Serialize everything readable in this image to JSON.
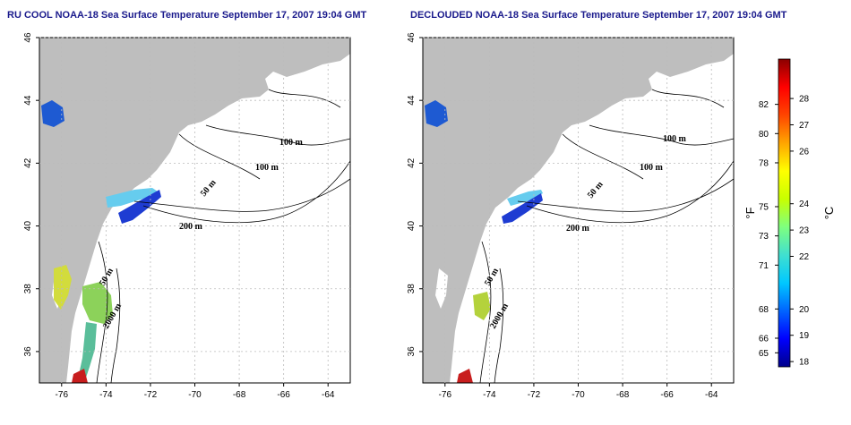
{
  "panels": [
    {
      "title": "RU COOL NOAA-18 Sea Surface Temperature September 17, 2007 19:04 GMT",
      "contour_labels": [
        "100 m",
        "100 m",
        "50 m",
        "200 m",
        "50 m",
        "2000 m"
      ]
    },
    {
      "title": "DECLOUDED NOAA-18 Sea Surface Temperature September 17, 2007 19:04 GMT",
      "contour_labels": [
        "100 m",
        "100 m",
        "50 m",
        "200 m",
        "50 m",
        "2000 m"
      ]
    }
  ],
  "lat_ticks": [
    "36",
    "38",
    "40",
    "42",
    "44",
    "46"
  ],
  "lon_ticks": [
    "-76",
    "-74",
    "-72",
    "-70",
    "-68",
    "-66",
    "-64"
  ],
  "colorbar": {
    "fahrenheit_ticks": [
      "65",
      "66",
      "68",
      "71",
      "73",
      "75",
      "78",
      "80",
      "82"
    ],
    "celsius_ticks": [
      "18",
      "19",
      "20",
      "22",
      "23",
      "24",
      "26",
      "27",
      "28"
    ],
    "f_unit": "°F",
    "c_unit": "°C",
    "colors": [
      "#00008b",
      "#0000ff",
      "#0064ff",
      "#00c8ff",
      "#40e0d0",
      "#7fff7f",
      "#c8ff00",
      "#ffff00",
      "#ffa500",
      "#ff4500",
      "#ff0000",
      "#8b0000"
    ]
  },
  "colors": {
    "land": "#bebebe",
    "ocean": "#ffffff",
    "title": "#1a1a8c",
    "grid": "#bbbbbb"
  }
}
